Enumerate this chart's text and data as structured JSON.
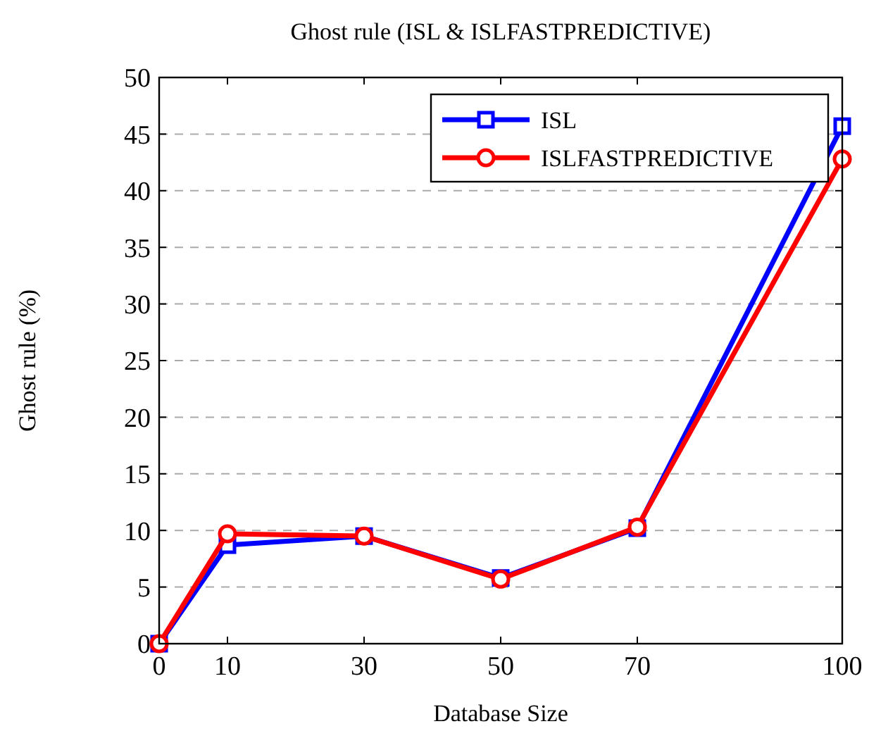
{
  "chart_data": {
    "type": "line",
    "title": "Ghost rule (ISL & ISLFASTPREDICTIVE)",
    "xlabel": "Database Size",
    "ylabel": "Ghost rule (%)",
    "x": [
      0,
      10,
      30,
      50,
      70,
      100
    ],
    "xlim": [
      0,
      100
    ],
    "xticks": [
      0,
      10,
      30,
      50,
      70,
      100
    ],
    "ylim": [
      0,
      50
    ],
    "yticks": [
      0,
      5,
      10,
      15,
      20,
      25,
      30,
      35,
      40,
      45,
      50
    ],
    "grid": "y",
    "legend": "top right",
    "line_style": "solid",
    "series": [
      {
        "name": "ISL",
        "color": "#0000ff",
        "marker": "square",
        "values": [
          0,
          8.7,
          9.5,
          5.8,
          10.2,
          45.7
        ]
      },
      {
        "name": "ISLFASTPREDICTIVE",
        "color": "#ff0000",
        "marker": "circle",
        "values": [
          0,
          9.7,
          9.5,
          5.7,
          10.3,
          42.8
        ]
      }
    ]
  }
}
